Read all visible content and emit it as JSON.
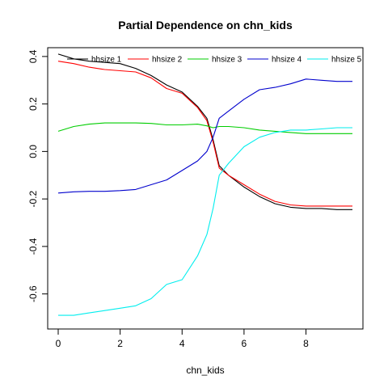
{
  "chart_data": {
    "type": "line",
    "title": "Partial Dependence on chn_kids",
    "xlabel": "chn_kids",
    "ylabel": "",
    "xlim": [
      0,
      9.5
    ],
    "ylim": [
      -0.7,
      0.42
    ],
    "xticks": [
      0,
      2,
      4,
      6,
      8
    ],
    "yticks": [
      -0.6,
      -0.4,
      -0.2,
      0.0,
      0.2,
      0.4
    ],
    "xtick_labels": [
      "0",
      "2",
      "4",
      "6",
      "8"
    ],
    "ytick_labels": [
      "-0.6",
      "-0.4",
      "-0.2",
      "0.0",
      "0.2",
      "0.4"
    ],
    "grid": false,
    "legend": {
      "position": "top",
      "frame": false
    },
    "x": [
      0,
      0.5,
      1,
      1.5,
      2,
      2.5,
      3,
      3.5,
      4,
      4.5,
      4.8,
      5,
      5.2,
      5.5,
      6,
      6.5,
      7,
      7.5,
      8,
      8.5,
      9,
      9.5
    ],
    "series": [
      {
        "name": "hhsize 1",
        "color": "#000000",
        "values": [
          0.41,
          0.39,
          0.38,
          0.375,
          0.37,
          0.35,
          0.32,
          0.28,
          0.25,
          0.19,
          0.14,
          0.05,
          -0.06,
          -0.1,
          -0.15,
          -0.19,
          -0.22,
          -0.235,
          -0.24,
          -0.24,
          -0.245,
          -0.245
        ]
      },
      {
        "name": "hhsize 2",
        "color": "#ff0000",
        "values": [
          0.38,
          0.37,
          0.355,
          0.345,
          0.34,
          0.335,
          0.31,
          0.265,
          0.245,
          0.185,
          0.13,
          0.04,
          -0.07,
          -0.1,
          -0.14,
          -0.18,
          -0.21,
          -0.225,
          -0.23,
          -0.23,
          -0.23,
          -0.23
        ]
      },
      {
        "name": "hhsize 3",
        "color": "#00cd00",
        "values": [
          0.085,
          0.105,
          0.115,
          0.12,
          0.12,
          0.12,
          0.118,
          0.112,
          0.112,
          0.115,
          0.108,
          0.1,
          0.105,
          0.105,
          0.1,
          0.09,
          0.085,
          0.08,
          0.075,
          0.075,
          0.075,
          0.075
        ]
      },
      {
        "name": "hhsize 4",
        "color": "#0000cd",
        "values": [
          -0.175,
          -0.17,
          -0.168,
          -0.168,
          -0.165,
          -0.16,
          -0.14,
          -0.12,
          -0.08,
          -0.04,
          0.0,
          0.06,
          0.14,
          0.17,
          0.22,
          0.26,
          0.27,
          0.285,
          0.305,
          0.3,
          0.295,
          0.295
        ]
      },
      {
        "name": "hhsize 5",
        "color": "#00eeee",
        "values": [
          -0.69,
          -0.69,
          -0.68,
          -0.67,
          -0.66,
          -0.65,
          -0.62,
          -0.56,
          -0.54,
          -0.44,
          -0.35,
          -0.24,
          -0.1,
          -0.05,
          0.02,
          0.06,
          0.08,
          0.09,
          0.09,
          0.095,
          0.1,
          0.1
        ]
      }
    ]
  }
}
